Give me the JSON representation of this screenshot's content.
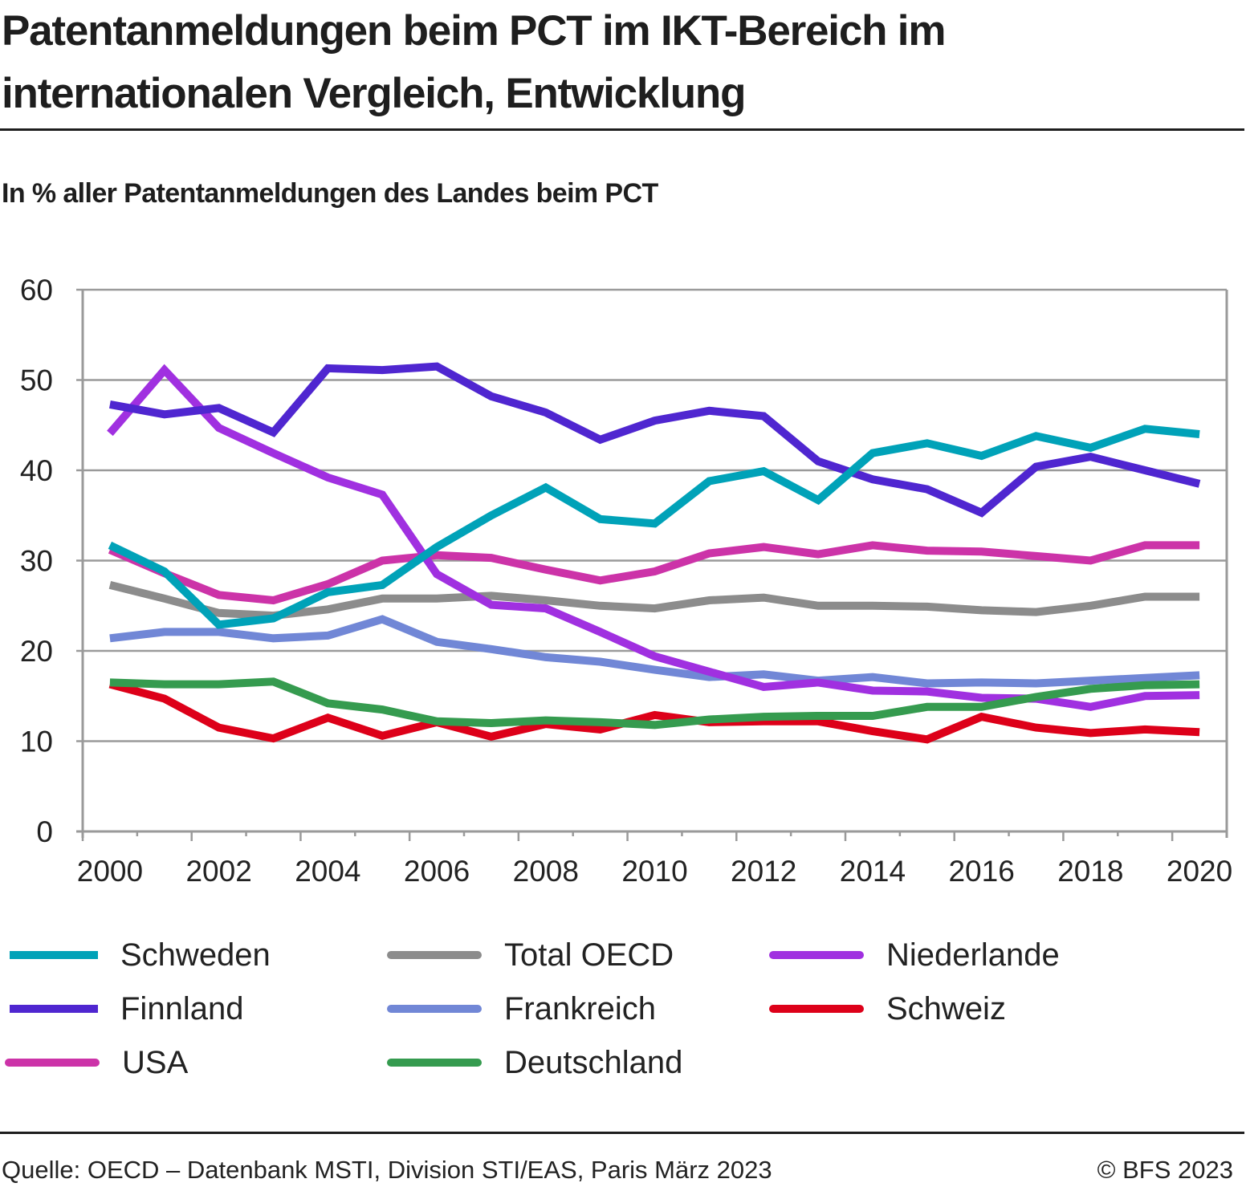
{
  "header": {
    "title": "Patentanmeldungen beim PCT im IKT-Bereich im internationalen Vergleich, Entwicklung",
    "subtitle": "In % aller Patentanmeldungen des Landes beim PCT"
  },
  "footer": {
    "source": "Quelle: OECD – Datenbank MSTI, Division STI/EAS, Paris März 2023",
    "copyright": "© BFS 2023"
  },
  "chart_data": {
    "type": "line",
    "title": "Patentanmeldungen beim PCT im IKT-Bereich im internationalen Vergleich, Entwicklung",
    "subtitle": "In % aller Patentanmeldungen des Landes beim PCT",
    "xlabel": "",
    "ylabel": "In % aller Patentanmeldungen des Landes beim PCT",
    "x": [
      2000,
      2001,
      2002,
      2003,
      2004,
      2005,
      2006,
      2007,
      2008,
      2009,
      2010,
      2011,
      2012,
      2013,
      2014,
      2015,
      2016,
      2017,
      2018,
      2019,
      2020
    ],
    "x_tick_labels": [
      "2000",
      "2002",
      "2004",
      "2006",
      "2008",
      "2010",
      "2012",
      "2014",
      "2016",
      "2018",
      "2020"
    ],
    "y_tick_labels": [
      "0",
      "10",
      "20",
      "30",
      "40",
      "50",
      "60"
    ],
    "ylim": [
      0,
      60
    ],
    "xlim": [
      2000,
      2020
    ],
    "grid": "horizontal",
    "legend_position": "bottom",
    "series": [
      {
        "name": "Schweden",
        "color": "#00a2b8",
        "values": [
          31.7,
          28.8,
          22.9,
          23.6,
          26.5,
          27.3,
          31.5,
          35.0,
          38.1,
          34.6,
          34.1,
          38.8,
          39.9,
          36.7,
          41.9,
          43.0,
          41.6,
          43.8,
          42.5,
          44.6,
          44.0
        ]
      },
      {
        "name": "Finnland",
        "color": "#4f26d0",
        "values": [
          47.3,
          46.2,
          46.9,
          44.2,
          51.3,
          51.1,
          51.5,
          48.2,
          46.4,
          43.4,
          45.5,
          46.6,
          46.0,
          41.0,
          39.0,
          37.9,
          35.3,
          40.4,
          41.5,
          40.0,
          38.5
        ]
      },
      {
        "name": "USA",
        "color": "#cc33a8",
        "values": [
          31.2,
          28.6,
          26.2,
          25.6,
          27.4,
          30.0,
          30.6,
          30.3,
          29.0,
          27.8,
          28.8,
          30.8,
          31.5,
          30.7,
          31.7,
          31.1,
          31.0,
          30.5,
          30.0,
          31.7,
          31.7
        ]
      },
      {
        "name": "Total OECD",
        "color": "#8c8c8c",
        "values": [
          27.3,
          25.8,
          24.2,
          23.9,
          24.6,
          25.8,
          25.8,
          26.1,
          25.6,
          25.0,
          24.7,
          25.6,
          25.9,
          25.0,
          25.0,
          24.9,
          24.5,
          24.3,
          25.0,
          26.0,
          26.0
        ]
      },
      {
        "name": "Frankreich",
        "color": "#7187d6",
        "values": [
          21.4,
          22.1,
          22.1,
          21.4,
          21.7,
          23.5,
          21.0,
          20.2,
          19.3,
          18.8,
          17.9,
          17.1,
          17.4,
          16.7,
          17.1,
          16.4,
          16.5,
          16.4,
          16.7,
          17.0,
          17.3
        ]
      },
      {
        "name": "Deutschland",
        "color": "#359b4f",
        "values": [
          16.5,
          16.3,
          16.3,
          16.6,
          14.2,
          13.5,
          12.2,
          12.0,
          12.3,
          12.1,
          11.8,
          12.4,
          12.7,
          12.8,
          12.8,
          13.8,
          13.8,
          14.9,
          15.8,
          16.2,
          16.3
        ]
      },
      {
        "name": "Niederlande",
        "color": "#a030e0",
        "values": [
          44.1,
          51.1,
          44.7,
          41.9,
          39.2,
          37.3,
          28.5,
          25.1,
          24.7,
          22.1,
          19.4,
          17.7,
          16.0,
          16.5,
          15.6,
          15.5,
          14.8,
          14.7,
          13.8,
          15.0,
          15.1
        ]
      },
      {
        "name": "Schweiz",
        "color": "#dd0019",
        "values": [
          16.3,
          14.7,
          11.5,
          10.3,
          12.6,
          10.6,
          12.1,
          10.5,
          11.9,
          11.3,
          12.9,
          12.1,
          12.2,
          12.2,
          11.1,
          10.2,
          12.7,
          11.5,
          10.9,
          11.3,
          11.0
        ]
      }
    ]
  },
  "legend": {
    "items": [
      {
        "name": "Schweden",
        "color": "#00a2b8"
      },
      {
        "name": "Finnland",
        "color": "#4f26d0"
      },
      {
        "name": "USA",
        "color": "#cc33a8"
      },
      {
        "name": "Total OECD",
        "color": "#8c8c8c"
      },
      {
        "name": "Frankreich",
        "color": "#7187d6"
      },
      {
        "name": "Deutschland",
        "color": "#359b4f"
      },
      {
        "name": "Niederlande",
        "color": "#a030e0"
      },
      {
        "name": "Schweiz",
        "color": "#dd0019"
      }
    ]
  }
}
